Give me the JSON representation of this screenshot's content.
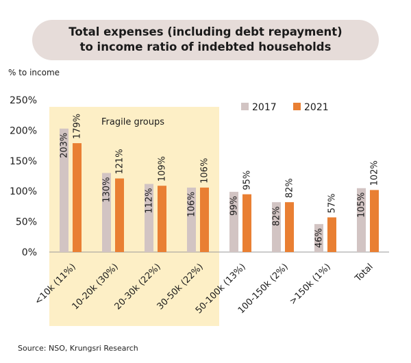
{
  "chart_data": {
    "type": "bar",
    "title_line1": "Total expenses (including debt repayment)",
    "title_line2": "to income ratio of indebted households",
    "ylabel": "% to income",
    "ylim": [
      0,
      250
    ],
    "yticks": [
      0,
      50,
      100,
      150,
      200,
      250
    ],
    "ytick_labels": [
      "0%",
      "50%",
      "100%",
      "150%",
      "200%",
      "250%"
    ],
    "categories": [
      "<10k (11%)",
      "10-20k (30%)",
      "20-30k (22%)",
      "30-50k (22%)",
      "50-100k (13%)",
      "100-150k (2%)",
      ">150k (1%)",
      "Total"
    ],
    "series": [
      {
        "name": "2017",
        "color": "#d2c4c3",
        "values": [
          203,
          130,
          112,
          106,
          99,
          82,
          46,
          105
        ]
      },
      {
        "name": "2021",
        "color": "#e97f33",
        "values": [
          179,
          121,
          109,
          106,
          95,
          82,
          57,
          102
        ]
      }
    ],
    "legend_position": "top-right",
    "highlight": {
      "label": "Fragile groups",
      "categories": [
        "<10k (11%)",
        "10-20k (30%)",
        "20-30k (22%)",
        "30-50k (22%)"
      ],
      "color": "#fdefc6"
    },
    "grid": false
  },
  "source": "Source: NSO, Krungsri Research"
}
